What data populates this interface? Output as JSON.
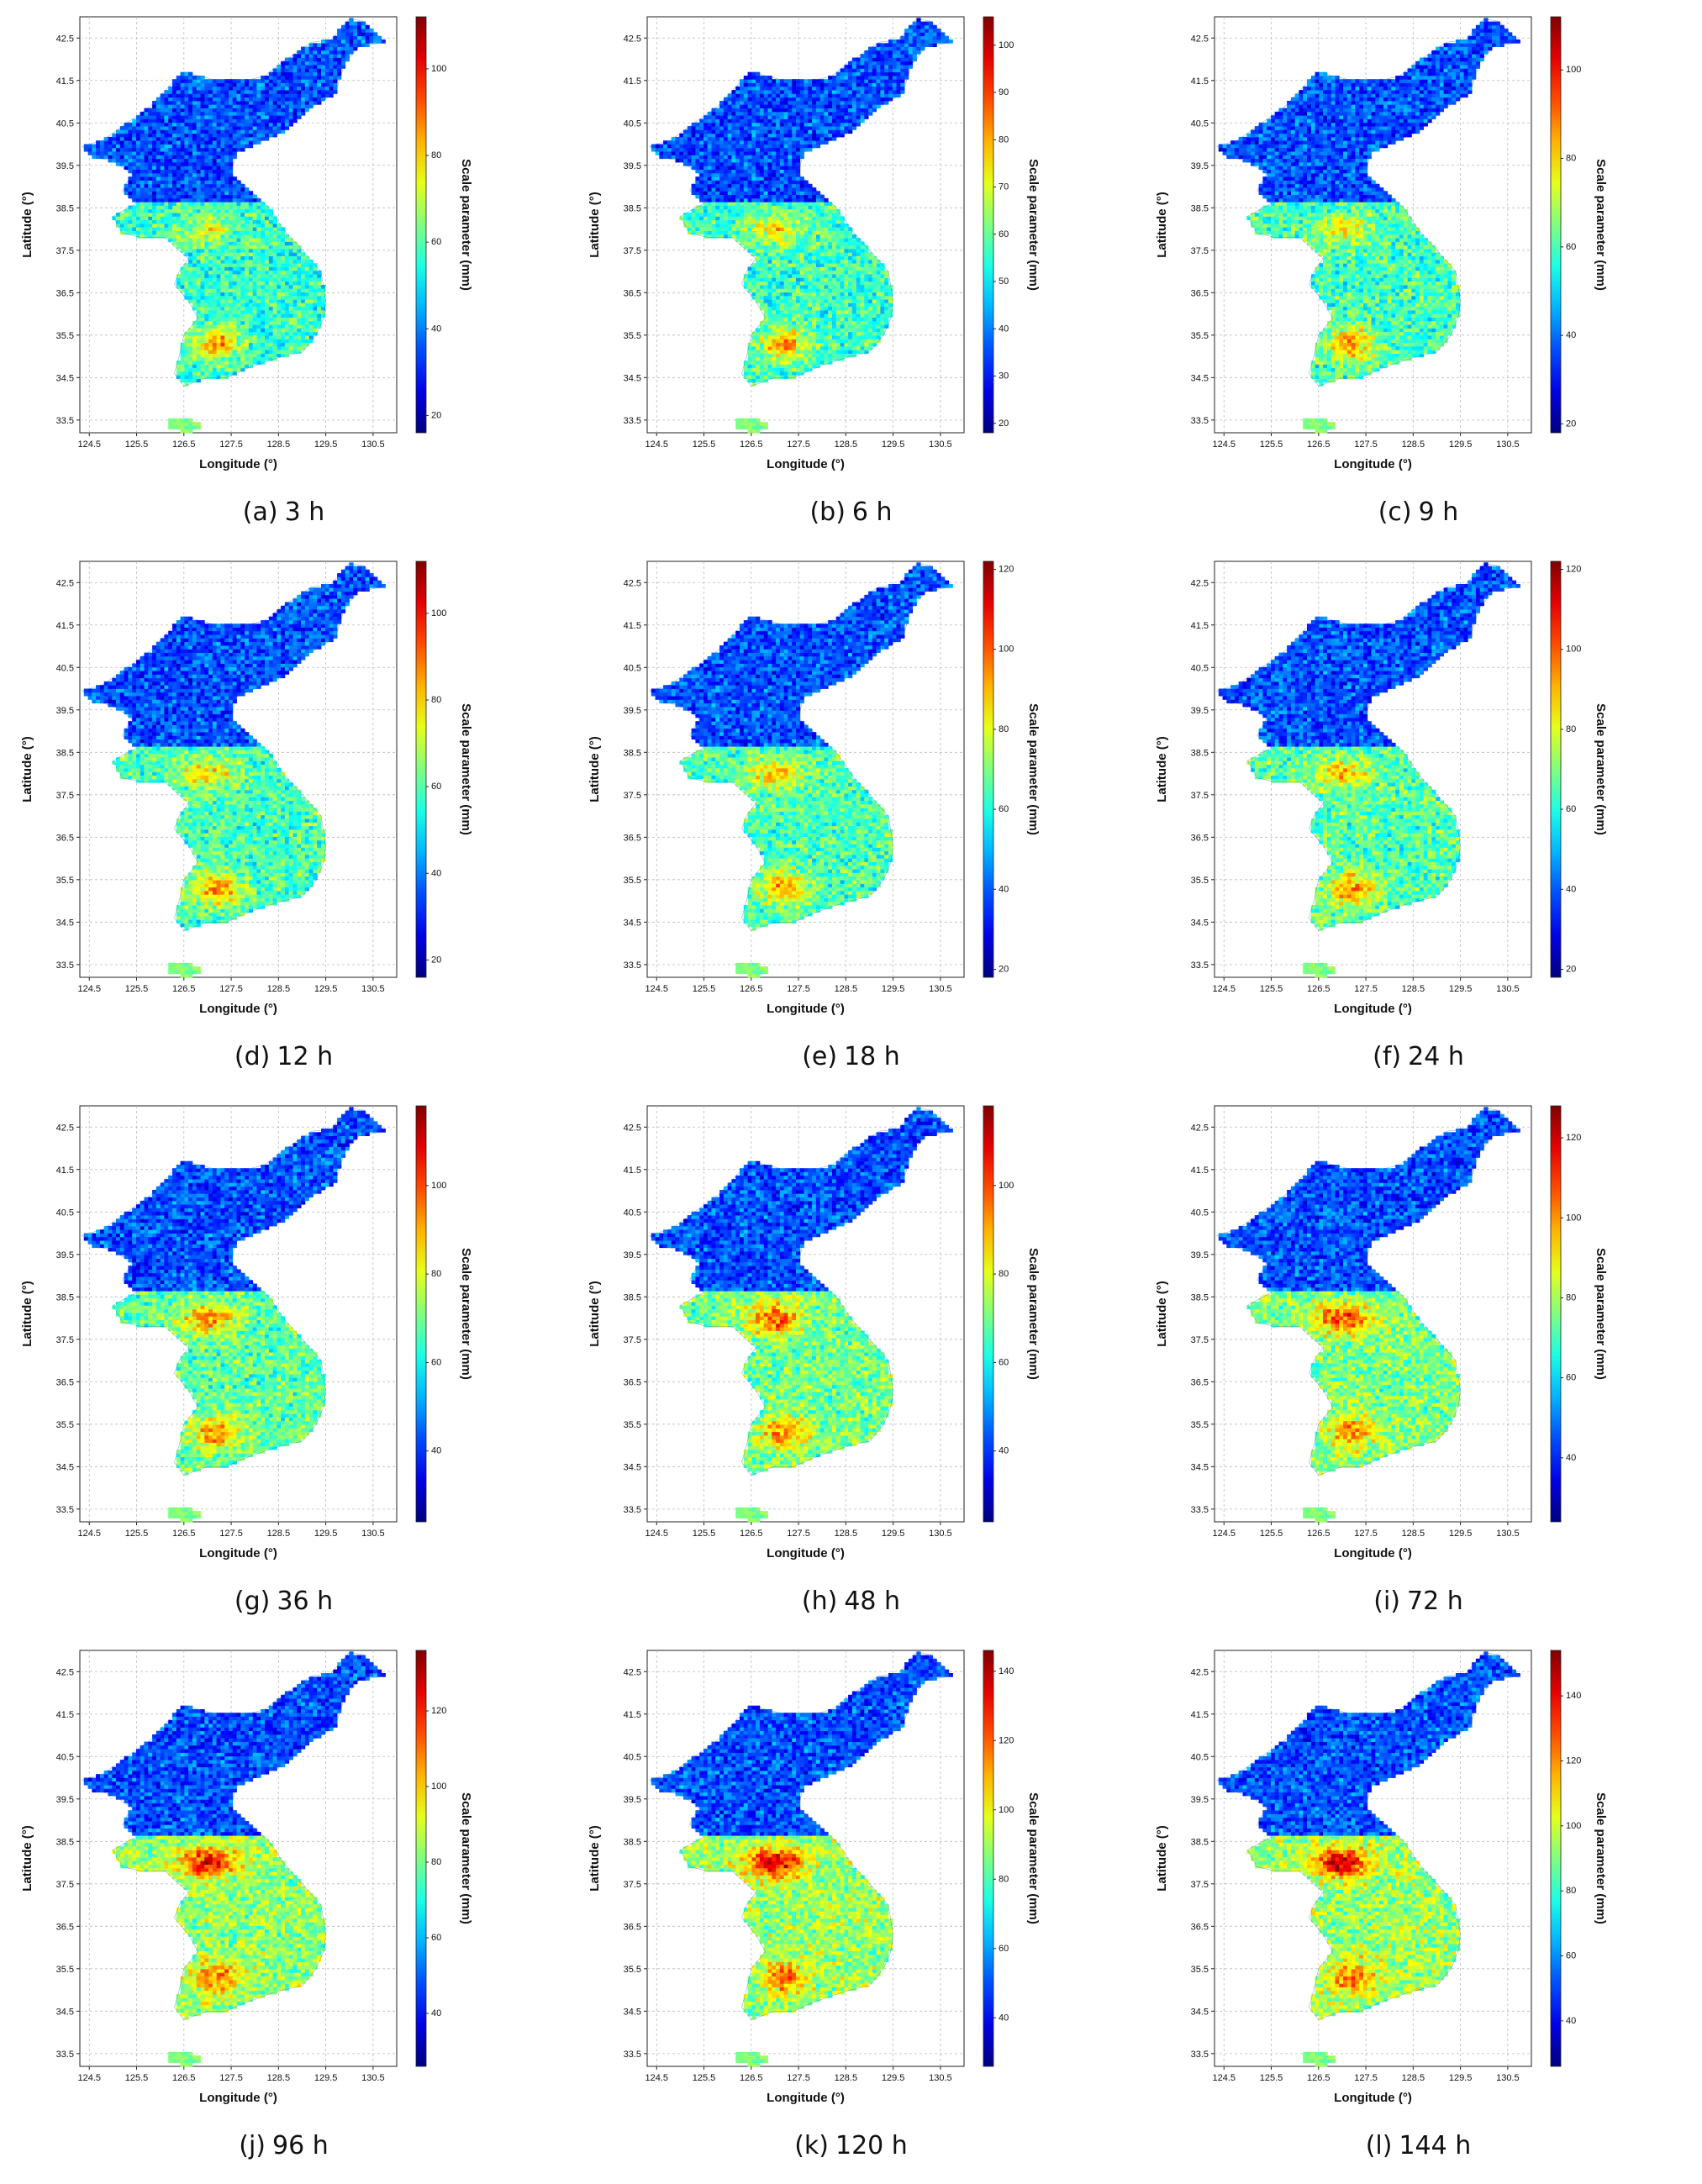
{
  "figure": {
    "x_label": "Longitude (°)",
    "y_label": "Latitude (°)",
    "colorbar_label": "Scale parameter (mm)",
    "x_ticks": [
      124.5,
      125.5,
      126.5,
      127.5,
      128.5,
      129.5,
      130.5
    ],
    "y_ticks": [
      33.5,
      34.5,
      35.5,
      36.5,
      37.5,
      38.5,
      39.5,
      40.5,
      41.5,
      42.5
    ],
    "x_range": [
      124.3,
      131.0
    ],
    "y_range": [
      33.2,
      43.0
    ],
    "colormap": "jet",
    "grid": true
  },
  "panels": [
    {
      "label": "(a)",
      "duration": "3 h",
      "cbar_min": 16,
      "cbar_max": 112,
      "cbar_ticks": [
        "20",
        "40",
        "60",
        "80",
        "100"
      ],
      "intensity": 0.3
    },
    {
      "label": "(b)",
      "duration": "6 h",
      "cbar_min": 18,
      "cbar_max": 106,
      "cbar_ticks": [
        "20",
        "30",
        "40",
        "50",
        "60",
        "70",
        "80",
        "90",
        "100"
      ],
      "intensity": 0.34
    },
    {
      "label": "(c)",
      "duration": "9 h",
      "cbar_min": 18,
      "cbar_max": 112,
      "cbar_ticks": [
        "20",
        "40",
        "60",
        "80",
        "100"
      ],
      "intensity": 0.36
    },
    {
      "label": "(d)",
      "duration": "12 h",
      "cbar_min": 16,
      "cbar_max": 112,
      "cbar_ticks": [
        "20",
        "40",
        "60",
        "80",
        "100"
      ],
      "intensity": 0.38
    },
    {
      "label": "(e)",
      "duration": "18 h",
      "cbar_min": 18,
      "cbar_max": 122,
      "cbar_ticks": [
        "20",
        "40",
        "60",
        "80",
        "100",
        "120"
      ],
      "intensity": 0.4
    },
    {
      "label": "(f)",
      "duration": "24 h",
      "cbar_min": 18,
      "cbar_max": 122,
      "cbar_ticks": [
        "20",
        "40",
        "60",
        "80",
        "100",
        "120"
      ],
      "intensity": 0.42
    },
    {
      "label": "(g)",
      "duration": "36 h",
      "cbar_min": 24,
      "cbar_max": 118,
      "cbar_ticks": [
        "40",
        "60",
        "80",
        "100"
      ],
      "intensity": 0.48
    },
    {
      "label": "(h)",
      "duration": "48 h",
      "cbar_min": 24,
      "cbar_max": 118,
      "cbar_ticks": [
        "40",
        "60",
        "80",
        "100"
      ],
      "intensity": 0.55
    },
    {
      "label": "(i)",
      "duration": "72 h",
      "cbar_min": 24,
      "cbar_max": 128,
      "cbar_ticks": [
        "40",
        "60",
        "80",
        "100",
        "120"
      ],
      "intensity": 0.6
    },
    {
      "label": "(j)",
      "duration": "96 h",
      "cbar_min": 26,
      "cbar_max": 136,
      "cbar_ticks": [
        "40",
        "60",
        "80",
        "100",
        "120"
      ],
      "intensity": 0.66
    },
    {
      "label": "(k)",
      "duration": "120 h",
      "cbar_min": 26,
      "cbar_max": 146,
      "cbar_ticks": [
        "40",
        "60",
        "80",
        "100",
        "120",
        "140"
      ],
      "intensity": 0.7
    },
    {
      "label": "(l)",
      "duration": "144 h",
      "cbar_min": 26,
      "cbar_max": 154,
      "cbar_ticks": [
        "40",
        "60",
        "80",
        "100",
        "120",
        "140"
      ],
      "intensity": 0.72
    }
  ]
}
